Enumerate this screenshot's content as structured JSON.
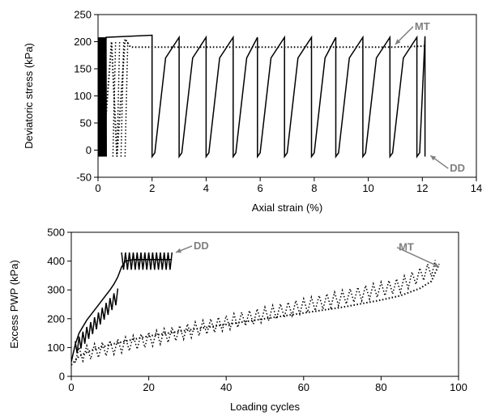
{
  "chart_data": [
    {
      "type": "line",
      "xlabel": "Axial strain (%)",
      "ylabel": "Deviatoric stress  (kPa)",
      "xlim": [
        0,
        14
      ],
      "ylim": [
        -50,
        250
      ],
      "xticks": [
        "0",
        "2",
        "4",
        "6",
        "8",
        "10",
        "12",
        "14"
      ],
      "yticks": [
        "-50",
        "0",
        "50",
        "100",
        "150",
        "200",
        "250"
      ],
      "grid": false,
      "annotations": [
        {
          "label": "MT",
          "x": 11.0,
          "y": 195
        },
        {
          "label": "DD",
          "x": 12.3,
          "y": -10
        }
      ],
      "series": [
        {
          "style": "solid",
          "description_points": "DD cyclic loops",
          "x": [
            0,
            0.3,
            2.0,
            2.0,
            2.1,
            2.5,
            3.0,
            3.0,
            3.1,
            3.5,
            4.0,
            4.0,
            4.1,
            4.5,
            5.0,
            5.0,
            5.1,
            5.5,
            5.9,
            5.9,
            6.0,
            6.4,
            6.9,
            6.9,
            7.0,
            7.4,
            7.9,
            7.9,
            8.0,
            8.4,
            8.8,
            8.8,
            8.9,
            9.3,
            9.8,
            9.8,
            9.9,
            10.3,
            10.8,
            10.8,
            10.9,
            11.3,
            11.8,
            11.8,
            11.9,
            12.1,
            12.1,
            12.1,
            12.1
          ],
          "y": [
            0,
            208,
            212,
            -12,
            -5,
            170,
            208,
            -12,
            -5,
            170,
            208,
            -12,
            -5,
            170,
            208,
            -12,
            -5,
            170,
            208,
            -12,
            -5,
            170,
            208,
            -12,
            -5,
            170,
            208,
            -12,
            -5,
            170,
            208,
            -12,
            -5,
            170,
            208,
            -12,
            -5,
            170,
            208,
            -12,
            -5,
            170,
            208,
            -12,
            -5,
            210,
            -12,
            95,
            -12
          ]
        },
        {
          "style": "dotted",
          "description_points": "MT monotonic / early cycles",
          "x": [
            0.2,
            0.5,
            0.7,
            1.0,
            1.2,
            2.0,
            4.0,
            6.0,
            8.0,
            10.0,
            11.0,
            12.1
          ],
          "y": [
            0,
            200,
            -12,
            205,
            190,
            190,
            190,
            190,
            190,
            190,
            190,
            192
          ]
        }
      ]
    },
    {
      "type": "line",
      "xlabel": "Loading  cycles",
      "ylabel": "Excess PWP (kPa)",
      "xlim": [
        0,
        100
      ],
      "ylim": [
        0,
        500
      ],
      "xticks": [
        "0",
        "20",
        "40",
        "60",
        "80",
        "100"
      ],
      "yticks": [
        "0",
        "100",
        "200",
        "300",
        "400",
        "500"
      ],
      "grid": false,
      "annotations": [
        {
          "label": "DD",
          "x": 27,
          "y": 430
        },
        {
          "label": "MT",
          "x": 95,
          "y": 380
        }
      ],
      "series": [
        {
          "style": "solid",
          "x": [
            0,
            1,
            2,
            4,
            6,
            8,
            10,
            11,
            12,
            13,
            14,
            16,
            18,
            20,
            22,
            24,
            26
          ],
          "y": [
            50,
            110,
            150,
            195,
            230,
            265,
            300,
            320,
            345,
            380,
            400,
            405,
            405,
            405,
            405,
            405,
            405
          ]
        },
        {
          "style": "dotted",
          "x": [
            0,
            2,
            5,
            10,
            15,
            20,
            25,
            30,
            40,
            50,
            60,
            70,
            80,
            85,
            90,
            93,
            95
          ],
          "y": [
            40,
            70,
            90,
            110,
            125,
            140,
            150,
            160,
            180,
            200,
            220,
            240,
            265,
            280,
            305,
            330,
            390
          ]
        }
      ]
    }
  ]
}
